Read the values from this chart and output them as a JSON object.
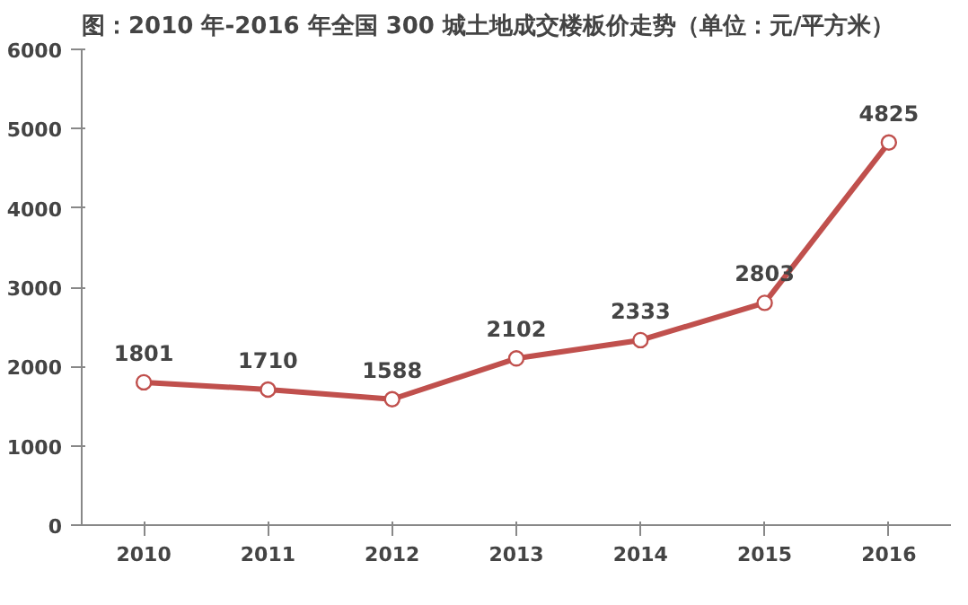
{
  "chart_data": {
    "type": "line",
    "title": "图：2010 年-2016 年全国 300 城土地成交楼板价走势（单位：元/平方米）",
    "categories": [
      "2010",
      "2011",
      "2012",
      "2013",
      "2014",
      "2015",
      "2016"
    ],
    "series": [
      {
        "color": "#c0504d",
        "values": [
          1801,
          1710,
          1588,
          2102,
          2333,
          2803,
          4825
        ]
      }
    ],
    "ylim": [
      0,
      6000
    ],
    "yticks": [
      0,
      1000,
      2000,
      3000,
      4000,
      5000,
      6000
    ],
    "grid": false,
    "marker": "circle",
    "line_style": "solid",
    "data_labels": true
  }
}
